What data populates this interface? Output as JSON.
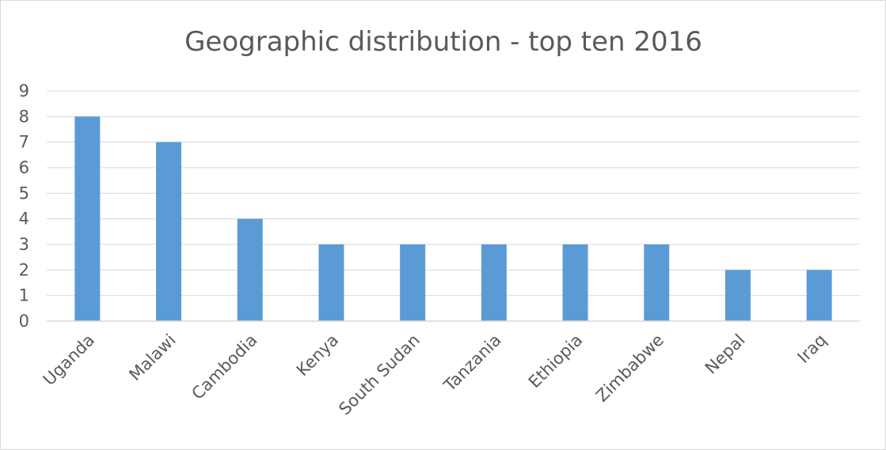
{
  "chart_data": {
    "type": "bar",
    "title": "Geographic distribution - top ten 2016",
    "categories": [
      "Uganda",
      "Malawi",
      "Cambodia",
      "Kenya",
      "South Sudan",
      "Tanzania",
      "Ethiopia",
      "Zimbabwe",
      "Nepal",
      "Iraq"
    ],
    "values": [
      8,
      7,
      4,
      3,
      3,
      3,
      3,
      3,
      2,
      2
    ],
    "xlabel": "",
    "ylabel": "",
    "ylim": [
      0,
      9
    ],
    "yticks": [
      "0",
      "1",
      "2",
      "3",
      "4",
      "5",
      "6",
      "7",
      "8",
      "9"
    ],
    "grid": true,
    "legend": "none",
    "bar_color": "#5b9bd5"
  }
}
